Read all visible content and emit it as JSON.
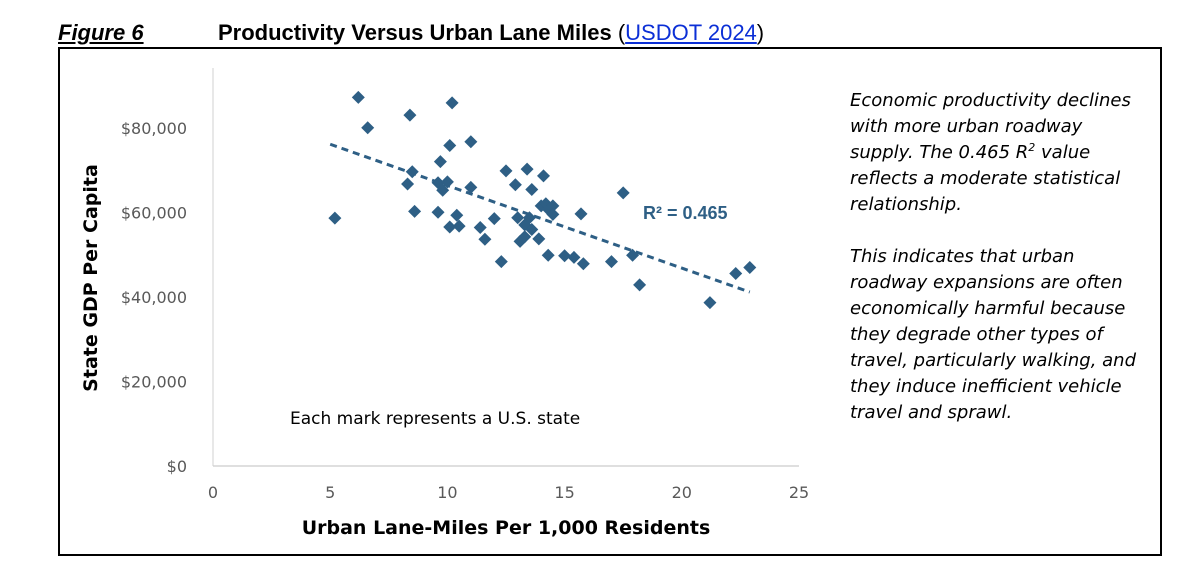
{
  "figure": {
    "number": "Figure 6",
    "title": "Productivity Versus Urban Lane Miles",
    "source_open": "(",
    "source_link": "USDOT 2024",
    "source_close": ")"
  },
  "side_text": {
    "p1_before": "Economic productivity declines with more urban roadway supply. The 0.465 R",
    "p1_sup": "2",
    "p1_after": " value reflects a moderate statistical relationship.",
    "p2": "This indicates that urban roadway expansions are often economically harmful because they degrade other types of travel, particularly walking, and they induce inefficient vehicle travel and sprawl."
  },
  "chart_data": {
    "type": "scatter",
    "title": "",
    "xlabel": "Urban Lane-Miles Per 1,000 Residents",
    "ylabel": "State GDP Per Capita",
    "xlim": [
      0,
      25
    ],
    "ylim": [
      0,
      90000
    ],
    "x_ticks": [
      0,
      5,
      10,
      15,
      20,
      25
    ],
    "x_tick_labels": [
      "0",
      "5",
      "10",
      "15",
      "20",
      "25"
    ],
    "y_ticks": [
      0,
      20000,
      40000,
      60000,
      80000
    ],
    "y_tick_labels": [
      "$0",
      "$20,000",
      "$40,000",
      "$60,000",
      "$80,000"
    ],
    "grid": false,
    "marker_color": "#2e5f85",
    "annotation": "Each mark represents a U.S. state",
    "r2_label": "R² = 0.465",
    "trendline": {
      "x": [
        5.0,
        22.9
      ],
      "y": [
        76200,
        41200
      ],
      "style": "dashed"
    },
    "points": [
      {
        "x": 5.2,
        "y": 58700
      },
      {
        "x": 6.2,
        "y": 87300
      },
      {
        "x": 6.6,
        "y": 80100
      },
      {
        "x": 8.3,
        "y": 66800
      },
      {
        "x": 8.4,
        "y": 83100
      },
      {
        "x": 8.5,
        "y": 69700
      },
      {
        "x": 8.6,
        "y": 60300
      },
      {
        "x": 9.6,
        "y": 60100
      },
      {
        "x": 9.6,
        "y": 67100
      },
      {
        "x": 9.7,
        "y": 72100
      },
      {
        "x": 9.8,
        "y": 65300
      },
      {
        "x": 10.0,
        "y": 67300
      },
      {
        "x": 10.1,
        "y": 75900
      },
      {
        "x": 10.1,
        "y": 56600
      },
      {
        "x": 10.2,
        "y": 86000
      },
      {
        "x": 10.4,
        "y": 59400
      },
      {
        "x": 10.5,
        "y": 56800
      },
      {
        "x": 11.0,
        "y": 76800
      },
      {
        "x": 11.0,
        "y": 66000
      },
      {
        "x": 11.4,
        "y": 56500
      },
      {
        "x": 11.6,
        "y": 53700
      },
      {
        "x": 12.0,
        "y": 58600
      },
      {
        "x": 12.3,
        "y": 48400
      },
      {
        "x": 12.5,
        "y": 69900
      },
      {
        "x": 12.9,
        "y": 66600
      },
      {
        "x": 13.0,
        "y": 58800
      },
      {
        "x": 13.1,
        "y": 53200
      },
      {
        "x": 13.3,
        "y": 57100
      },
      {
        "x": 13.3,
        "y": 54300
      },
      {
        "x": 13.4,
        "y": 70300
      },
      {
        "x": 13.5,
        "y": 58800
      },
      {
        "x": 13.6,
        "y": 65500
      },
      {
        "x": 13.6,
        "y": 56000
      },
      {
        "x": 13.9,
        "y": 53800
      },
      {
        "x": 14.0,
        "y": 61600
      },
      {
        "x": 14.1,
        "y": 68700
      },
      {
        "x": 14.2,
        "y": 62100
      },
      {
        "x": 14.3,
        "y": 60800
      },
      {
        "x": 14.3,
        "y": 49900
      },
      {
        "x": 14.5,
        "y": 61600
      },
      {
        "x": 14.5,
        "y": 59600
      },
      {
        "x": 15.0,
        "y": 49800
      },
      {
        "x": 15.4,
        "y": 49400
      },
      {
        "x": 15.7,
        "y": 59700
      },
      {
        "x": 15.8,
        "y": 47900
      },
      {
        "x": 17.0,
        "y": 48400
      },
      {
        "x": 17.5,
        "y": 64700
      },
      {
        "x": 17.9,
        "y": 49900
      },
      {
        "x": 18.2,
        "y": 42900
      },
      {
        "x": 21.2,
        "y": 38700
      },
      {
        "x": 22.3,
        "y": 45600
      },
      {
        "x": 22.9,
        "y": 47000
      }
    ]
  }
}
